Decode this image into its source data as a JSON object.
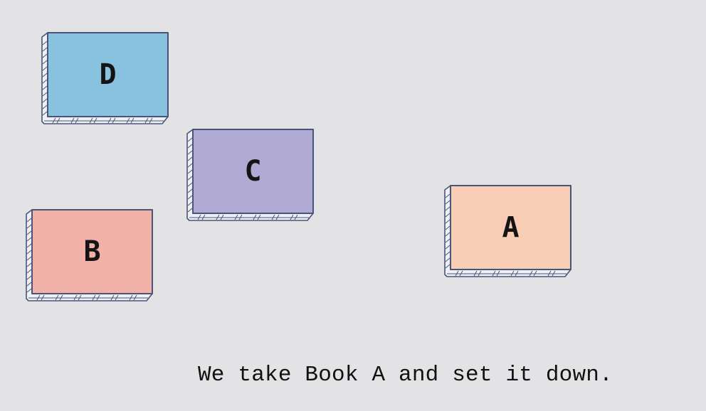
{
  "books": [
    {
      "id": "d",
      "label": "D",
      "color": "#89c2df"
    },
    {
      "id": "c",
      "label": "C",
      "color": "#b0a9d4"
    },
    {
      "id": "b",
      "label": "B",
      "color": "#f2b1a8"
    },
    {
      "id": "a",
      "label": "A",
      "color": "#f7ceb5"
    }
  ],
  "caption": "We take Book A and set it down.",
  "colors": {
    "background": "#e3e3e5",
    "outline": "#4a5478",
    "text": "#141414"
  }
}
